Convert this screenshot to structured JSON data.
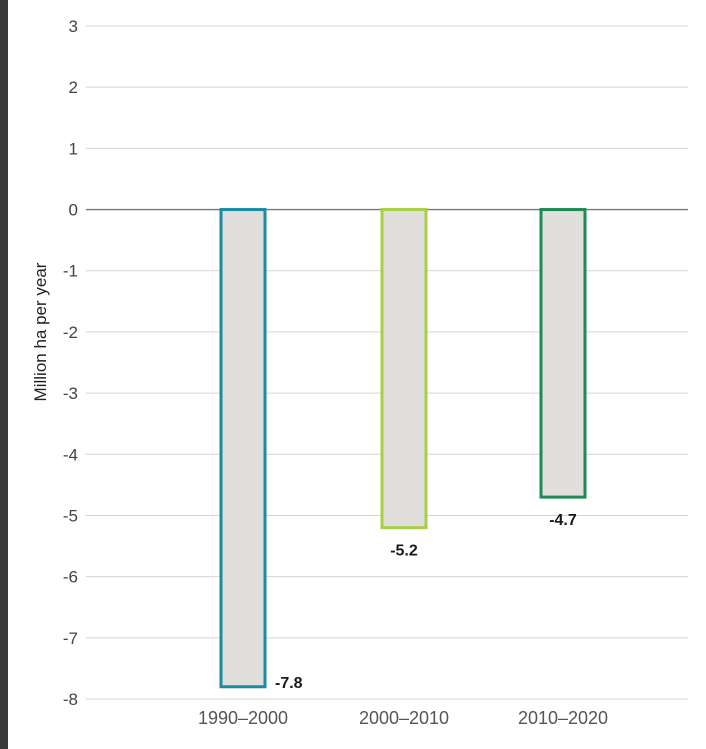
{
  "chart_data": {
    "type": "bar",
    "title": "",
    "xlabel": "",
    "ylabel": "Million ha per year",
    "ylim": [
      -8,
      3
    ],
    "yticks": [
      3,
      2,
      1,
      0,
      -1,
      -2,
      -3,
      -4,
      -5,
      -6,
      -7,
      -8
    ],
    "grid": true,
    "legend": "none",
    "categories": [
      "1990–2000",
      "2000–2010",
      "2010–2020"
    ],
    "values": [
      -7.8,
      -5.2,
      -4.7
    ],
    "data_labels": [
      "-7.8",
      "-5.2",
      "-4.7"
    ],
    "bar_fill": "#e0dfdb",
    "bar_outline_colors": [
      "#1b8aa5",
      "#a8cf45",
      "#1e8a55"
    ]
  }
}
